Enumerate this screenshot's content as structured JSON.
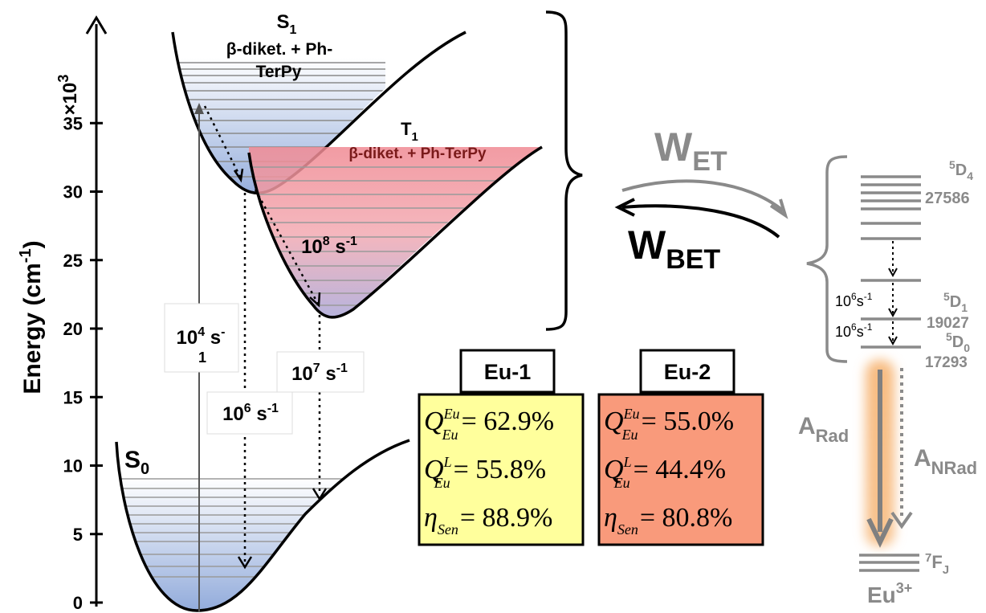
{
  "axis": {
    "ylabel": "Energy (cm",
    "ylabel_sup": "-1",
    "ylabel_close": ")",
    "multiplier": "×10",
    "multiplier_sup": "3",
    "ticks": [
      "0",
      "5",
      "10",
      "15",
      "20",
      "25",
      "30",
      "35"
    ]
  },
  "states": {
    "s0": {
      "letter": "S",
      "sub": "0"
    },
    "s1": {
      "letter": "S",
      "sub": "1",
      "line1": "β-diket. + Ph-",
      "line2": "TerPy"
    },
    "t1": {
      "letter": "T",
      "sub": "1",
      "label": "β-diket. + Ph-TerPy"
    }
  },
  "rates": {
    "abs": {
      "base": "10",
      "sup": "4",
      "unit": " s",
      "sup2": "-",
      "sub2": "1"
    },
    "isc": {
      "base": "10",
      "sup": "8",
      "unit": " s",
      "sup2": "-1"
    },
    "s1_decay": {
      "base": "10",
      "sup": "6",
      "unit": " s",
      "sup2": "-1"
    },
    "t1_decay": {
      "base": "10",
      "sup": "7",
      "unit": " s",
      "sup2": "-1"
    }
  },
  "transfer": {
    "wet": {
      "main": "W",
      "sub": "ET"
    },
    "wbet": {
      "main": "W",
      "sub": "BET"
    }
  },
  "europium": {
    "d4": {
      "sup": "5",
      "main": "D",
      "sub": "4",
      "energy": "27586"
    },
    "d1": {
      "sup": "5",
      "main": "D",
      "sub": "1",
      "energy": "19027"
    },
    "d0": {
      "sup": "5",
      "main": "D",
      "sub": "0",
      "energy": "17293"
    },
    "f": {
      "sup": "7",
      "main": "F",
      "sub": "J"
    },
    "ion": {
      "main": "Eu",
      "sup": "3+"
    },
    "rate_upper": {
      "base": "10",
      "sup": "6",
      "unit": "s",
      "sup2": "-1"
    },
    "rate_lower": {
      "base": "10",
      "sup": "6",
      "unit": "s",
      "sup2": "-1"
    },
    "arad": {
      "main": "A",
      "sub": "Rad"
    },
    "anrad": {
      "main": "A",
      "sub": "NRad"
    }
  },
  "tables": [
    {
      "title": "Eu-1",
      "fill": "#ffff9c",
      "rows": [
        {
          "sym": "Q",
          "sup": "Eu",
          "sub": "Eu",
          "value": "= 62.9%"
        },
        {
          "sym": "Q",
          "sup": "L",
          "sub": "Eu",
          "value": "= 55.8%"
        },
        {
          "sym": "η",
          "sup": "",
          "sub": "Sen",
          "value": "= 88.9%"
        }
      ]
    },
    {
      "title": "Eu-2",
      "fill": "#f99a7b",
      "rows": [
        {
          "sym": "Q",
          "sup": "Eu",
          "sub": "Eu",
          "value": "= 55.0%"
        },
        {
          "sym": "Q",
          "sup": "L",
          "sub": "Eu",
          "value": "= 44.4%"
        },
        {
          "sym": "η",
          "sup": "",
          "sub": "Sen",
          "value": "= 80.8%"
        }
      ]
    }
  ],
  "colors": {
    "blue_fill": "#8fa9da",
    "red_fill": "#f08a93",
    "gray": "#8a8a8a",
    "glow": "#f7b87a"
  }
}
